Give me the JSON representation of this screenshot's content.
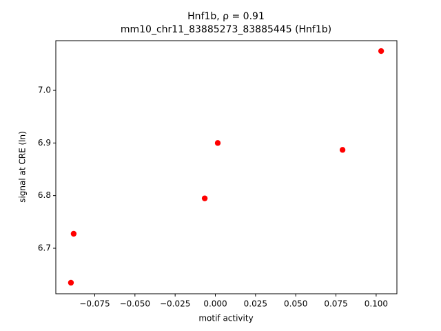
{
  "chart_data": {
    "type": "scatter",
    "title": "Hnf1b, ρ = 0.91",
    "subtitle": "mm10_chr11_83885273_83885445 (Hnf1b)",
    "x_label": "motif activity",
    "y_label": "signal at CRE (ln)",
    "series": [
      {
        "color": "#ff0000",
        "x": [
          -0.0898,
          -0.0881,
          -0.0066,
          0.0015,
          0.0791,
          0.1031
        ],
        "values": [
          6.6345,
          6.7275,
          6.7948,
          6.9,
          6.8869,
          7.0747
        ]
      }
    ],
    "xlim": [
      -0.0992,
      0.1129
    ],
    "ylim": [
      6.6135,
      7.0944
    ],
    "xticks": [
      {
        "value": -0.075,
        "label": "−0.075"
      },
      {
        "value": -0.05,
        "label": "−0.050"
      },
      {
        "value": -0.025,
        "label": "−0.025"
      },
      {
        "value": 0,
        "label": "0.000"
      },
      0.025,
      {
        "value": 0.05,
        "label": "0.050"
      },
      0.075,
      {
        "value": 0.1,
        "label": "0.100"
      }
    ],
    "yticks": [
      6.7,
      6.8,
      6.9,
      {
        "value": 7,
        "label": "7.0"
      }
    ],
    "grid": false
  }
}
